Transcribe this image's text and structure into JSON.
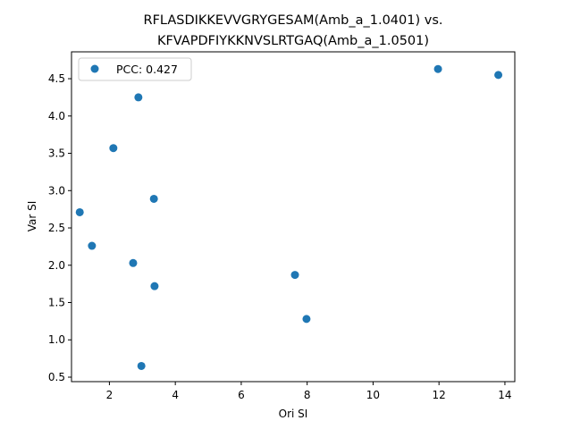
{
  "chart_data": {
    "type": "scatter",
    "title_line1": "RFLASDIKKEVVGRYGESAM(Amb_a_1.0401) vs.",
    "title_line2": "KFVAPDFIYKKNVSLRTGAQ(Amb_a_1.0501)",
    "xlabel": "Ori SI",
    "ylabel": "Var SI",
    "xlim": [
      0.85,
      14.3
    ],
    "ylim": [
      0.44,
      4.86
    ],
    "xticks": [
      2,
      4,
      6,
      8,
      10,
      12,
      14
    ],
    "xtick_labels": [
      "2",
      "4",
      "6",
      "8",
      "10",
      "12",
      "14"
    ],
    "yticks": [
      0.5,
      1.0,
      1.5,
      2.0,
      2.5,
      3.0,
      3.5,
      4.0,
      4.5
    ],
    "ytick_labels": [
      "0.5",
      "1.0",
      "1.5",
      "2.0",
      "2.5",
      "3.0",
      "3.5",
      "4.0",
      "4.5"
    ],
    "grid": false,
    "legend_position": "top-left",
    "series": [
      {
        "name": "PCC: 0.427",
        "color": "#1f77b4",
        "points": [
          {
            "x": 1.1,
            "y": 2.71
          },
          {
            "x": 1.47,
            "y": 2.26
          },
          {
            "x": 2.12,
            "y": 3.57
          },
          {
            "x": 2.72,
            "y": 2.03
          },
          {
            "x": 2.88,
            "y": 4.25
          },
          {
            "x": 2.97,
            "y": 0.65
          },
          {
            "x": 3.35,
            "y": 2.89
          },
          {
            "x": 3.37,
            "y": 1.72
          },
          {
            "x": 7.63,
            "y": 1.87
          },
          {
            "x": 7.98,
            "y": 1.28
          },
          {
            "x": 11.97,
            "y": 4.63
          },
          {
            "x": 13.8,
            "y": 4.55
          }
        ]
      }
    ]
  }
}
